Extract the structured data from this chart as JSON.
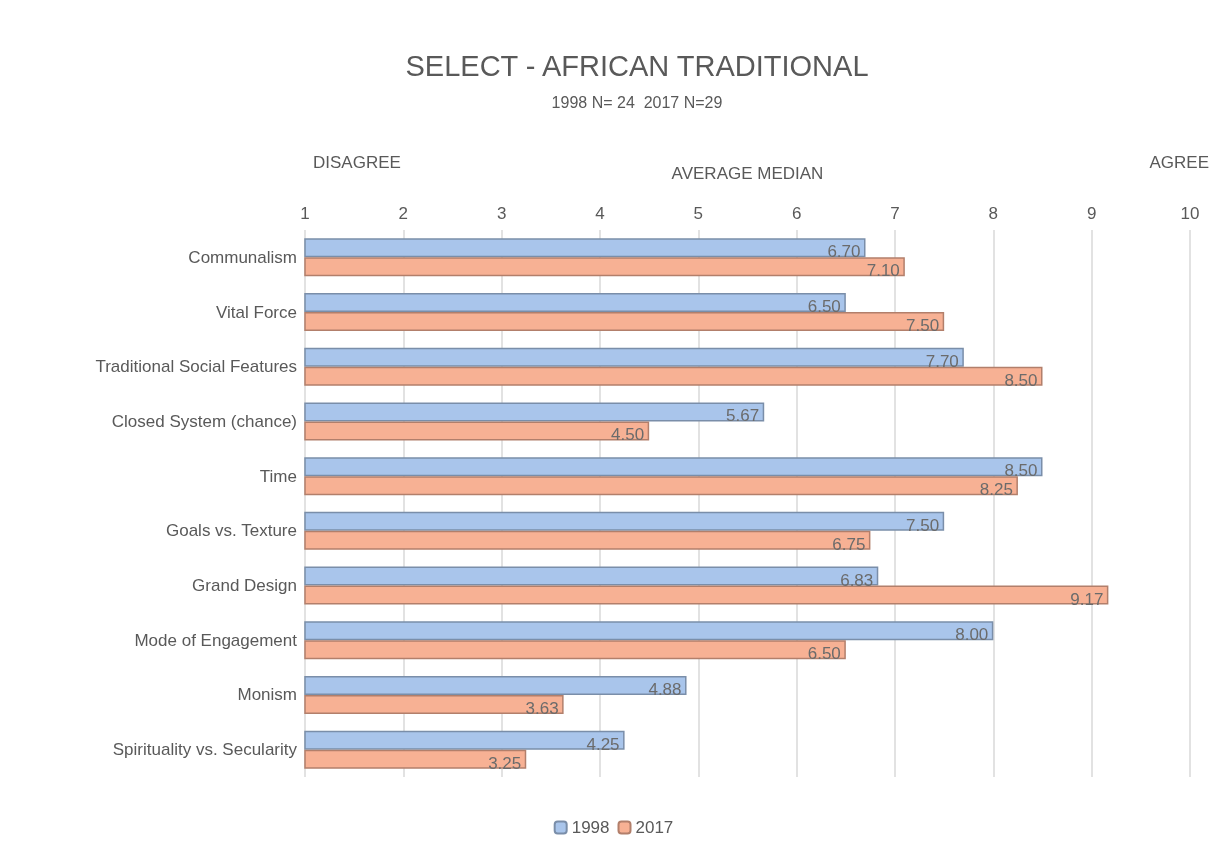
{
  "chart_data": {
    "type": "bar",
    "orientation": "horizontal",
    "title": "SELECT - AFRICAN TRADITIONAL",
    "subtitle": "1998 N= 24  2017 N=29",
    "xlabel": "AVERAGE MEDIAN",
    "annotations": [
      "DISAGREE",
      "AGREE"
    ],
    "categories": [
      "Communalism",
      "Vital Force",
      "Traditional Social Features",
      "Closed System (chance)",
      "Time",
      "Goals vs. Texture",
      "Grand Design",
      "Mode of Engagement",
      "Monism",
      "Spirituality vs. Secularity"
    ],
    "series": [
      {
        "name": "1998",
        "color": "#a9c5eb",
        "values": [
          6.7,
          6.5,
          7.7,
          5.67,
          8.5,
          7.5,
          6.83,
          8.0,
          4.88,
          4.25
        ],
        "value_labels": [
          "6.70",
          "6.50",
          "7.70",
          "5.67",
          "8.50",
          "7.50",
          "6.83",
          "8.00",
          "4.88",
          "4.25"
        ]
      },
      {
        "name": "2017",
        "color": "#f7b194",
        "values": [
          7.1,
          7.5,
          8.5,
          4.5,
          8.25,
          6.75,
          9.17,
          6.5,
          3.63,
          3.25
        ],
        "value_labels": [
          "7.10",
          "7.50",
          "8.50",
          "4.50",
          "8.25",
          "6.75",
          "9.17",
          "6.50",
          "3.63",
          "3.25"
        ]
      }
    ],
    "xlim": [
      1,
      10
    ],
    "xticks": [
      1,
      2,
      3,
      4,
      5,
      6,
      7,
      8,
      9,
      10
    ],
    "grid": "x",
    "legend": "bottom"
  }
}
